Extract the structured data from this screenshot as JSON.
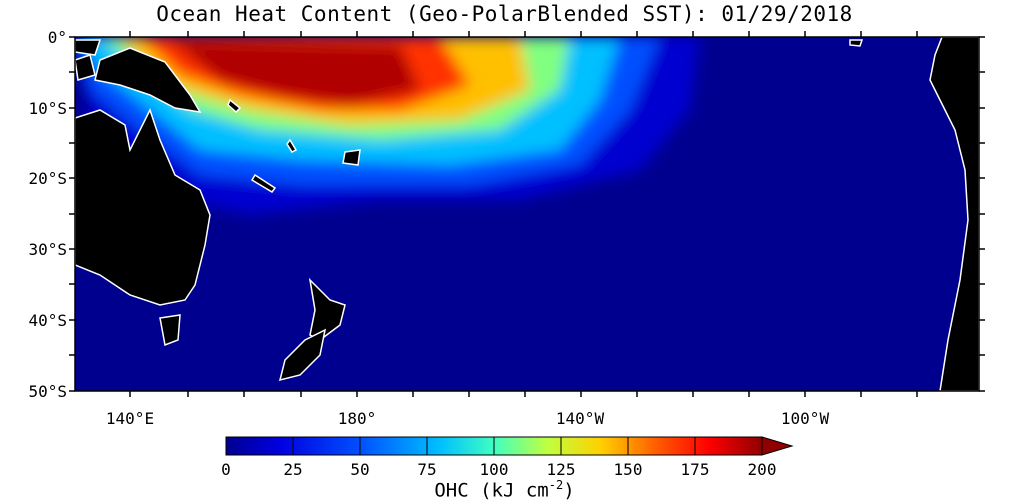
{
  "title": "Ocean Heat Content (Geo-PolarBlended SST): 01/29/2018",
  "map": {
    "lat_labels": [
      "0°",
      "10°S",
      "20°S",
      "30°S",
      "40°S",
      "50°S"
    ],
    "lon_labels": [
      "140°E",
      "180°",
      "140°W",
      "100°W"
    ],
    "lat_range": [
      -50,
      0
    ],
    "lon_range": [
      "130°E",
      "80°W"
    ],
    "colors": {
      "ocean": "#00008f",
      "land": "#000000",
      "coast": "#ffffff"
    }
  },
  "colorbar": {
    "ticks": [
      "0",
      "25",
      "50",
      "75",
      "100",
      "125",
      "150",
      "175",
      "200"
    ],
    "min": 0,
    "max": 200,
    "units_label": "OHC (kJ cm",
    "units_exponent": "-2",
    "units_close": ")",
    "colors": [
      "#00008f",
      "#0000d0",
      "#0020ff",
      "#0070ff",
      "#00c0ff",
      "#20ffe0",
      "#80ff80",
      "#e0ff20",
      "#ffc000",
      "#ff6000",
      "#ff1000",
      "#c00000",
      "#8f0000"
    ]
  }
}
